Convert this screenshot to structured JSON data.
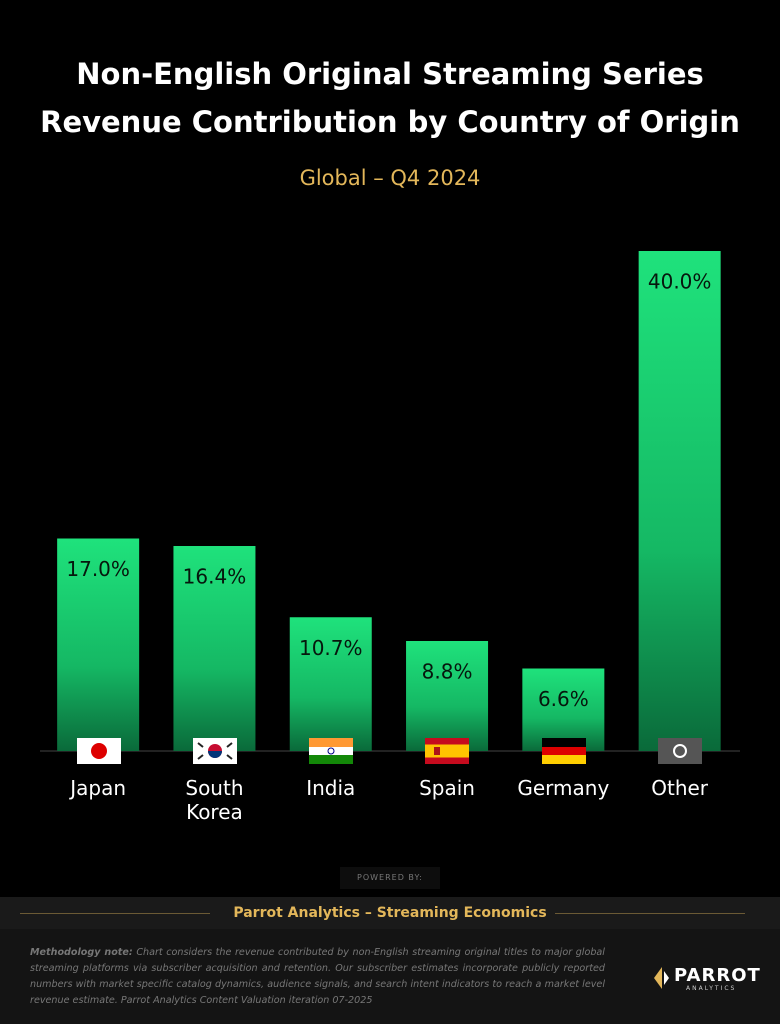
{
  "chart_data": {
    "type": "bar",
    "title": "Non-English Original Streaming Series Revenue Contribution by Country of Origin",
    "subtitle": "Global  – Q4 2024",
    "categories": [
      "Japan",
      "South Korea",
      "India",
      "Spain",
      "Germany",
      "Other"
    ],
    "values": [
      17.0,
      16.4,
      10.7,
      8.8,
      6.6,
      40.0
    ],
    "value_labels": [
      "17.0%",
      "16.4%",
      "10.7%",
      "8.8%",
      "6.6%",
      "40.0%"
    ],
    "color": "#1fe27c"
  },
  "footer": {
    "powered_by": "POWERED BY:",
    "brand_line": "Parrot Analytics – Streaming Economics",
    "note_label": "Methodology note:",
    "note_text": "Chart considers the revenue contributed by non-English streaming original titles to major global streaming platforms via subscriber acquisition and retention. Our subscriber estimates incorporate publicly reported numbers with market specific catalog dynamics, audience signals, and search intent indicators to reach a market level revenue estimate. Parrot Analytics Content Valuation iteration 07-2025",
    "logo_name": "PARROT",
    "logo_sub": "ANALYTICS"
  }
}
